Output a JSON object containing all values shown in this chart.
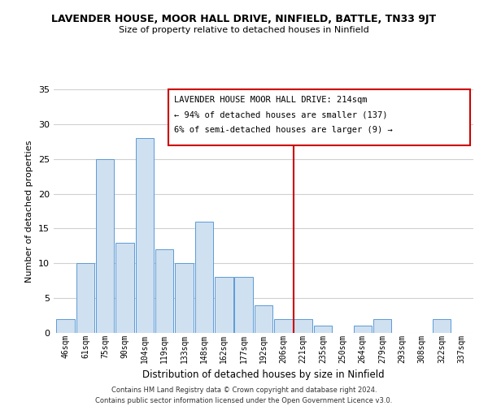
{
  "title": "LAVENDER HOUSE, MOOR HALL DRIVE, NINFIELD, BATTLE, TN33 9JT",
  "subtitle": "Size of property relative to detached houses in Ninfield",
  "xlabel": "Distribution of detached houses by size in Ninfield",
  "ylabel": "Number of detached properties",
  "bar_labels": [
    "46sqm",
    "61sqm",
    "75sqm",
    "90sqm",
    "104sqm",
    "119sqm",
    "133sqm",
    "148sqm",
    "162sqm",
    "177sqm",
    "192sqm",
    "206sqm",
    "221sqm",
    "235sqm",
    "250sqm",
    "264sqm",
    "279sqm",
    "293sqm",
    "308sqm",
    "322sqm",
    "337sqm"
  ],
  "bar_values": [
    2,
    10,
    25,
    13,
    28,
    12,
    10,
    16,
    8,
    8,
    4,
    2,
    2,
    1,
    0,
    1,
    2,
    0,
    0,
    2,
    0
  ],
  "bar_color": "#cfe0f1",
  "bar_edge_color": "#5b9bd5",
  "ylim": [
    0,
    35
  ],
  "yticks": [
    0,
    5,
    10,
    15,
    20,
    25,
    30,
    35
  ],
  "annotation_title": "LAVENDER HOUSE MOOR HALL DRIVE: 214sqm",
  "annotation_line1": "← 94% of detached houses are smaller (137)",
  "annotation_line2": "6% of semi-detached houses are larger (9) →",
  "annotation_box_color": "#ffffff",
  "annotation_box_edge": "#cc0000",
  "marker_line_color": "#cc0000",
  "footer_line1": "Contains HM Land Registry data © Crown copyright and database right 2024.",
  "footer_line2": "Contains public sector information licensed under the Open Government Licence v3.0.",
  "background_color": "#ffffff",
  "grid_color": "#d0d0d0",
  "title_fontsize": 9,
  "subtitle_fontsize": 8,
  "ylabel_fontsize": 8,
  "xlabel_fontsize": 8.5,
  "tick_fontsize": 7,
  "annot_fontsize": 7.5,
  "footer_fontsize": 6
}
